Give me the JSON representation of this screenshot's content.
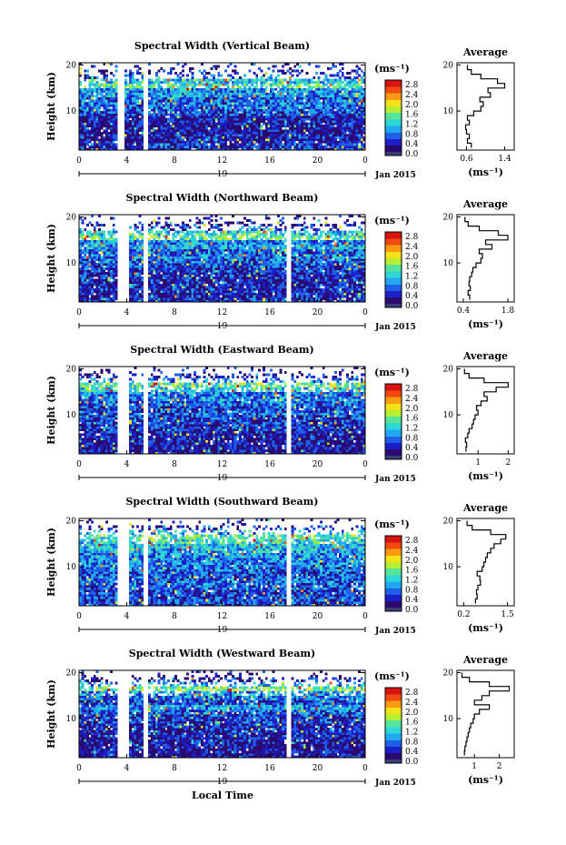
{
  "figure": {
    "xlabel": "Local Time",
    "date_label": "Jan 2015",
    "day_label": "19",
    "colorbar_unit": "(ms⁻¹)",
    "colorbar_ticks": [
      "0.0",
      "0.4",
      "0.8",
      "1.2",
      "1.6",
      "2.0",
      "2.4",
      "2.8"
    ],
    "avg_title": "Average",
    "avg_xlabel": "(ms⁻¹)",
    "ylabel": "Height (km)"
  },
  "colors": {
    "scale": [
      "#2a0a6e",
      "#1c1ec8",
      "#1f5fe8",
      "#21a8ee",
      "#2fd6d6",
      "#56e39a",
      "#b5ee35",
      "#f3e21a",
      "#f89a14",
      "#f04a12",
      "#d81410"
    ],
    "below_scale": "#3c3c78"
  },
  "chart_data": [
    {
      "type": "heatmap",
      "title": "Spectral Width (Vertical Beam)",
      "x_ticks": [
        "0",
        "4",
        "8",
        "12",
        "16",
        "20",
        "0"
      ],
      "xlim": [
        0,
        24
      ],
      "y_ticks": [
        "10",
        "20"
      ],
      "ylim": [
        1.5,
        20.5
      ],
      "color_range": [
        0,
        3.0
      ],
      "data_gaps_hours": [
        [
          3.3,
          3.8
        ],
        [
          5.5,
          5.8
        ]
      ],
      "avg_profile": {
        "x_ticks": [
          "0.6",
          "1.4"
        ],
        "xlim": [
          0.4,
          1.6
        ],
        "heights_km": [
          2.5,
          3.5,
          4.5,
          5.5,
          6.5,
          7.5,
          8.5,
          9.5,
          10.5,
          11.5,
          12.5,
          13.5,
          14.5,
          15.5,
          16.5,
          17.5,
          18.5,
          19.5
        ],
        "values": [
          0.7,
          0.62,
          0.66,
          0.6,
          0.58,
          0.66,
          0.62,
          0.75,
          0.9,
          0.95,
          0.88,
          1.1,
          1.05,
          1.4,
          1.25,
          0.9,
          0.7,
          0.62
        ]
      }
    },
    {
      "type": "heatmap",
      "title": "Spectral Width (Northward Beam)",
      "x_ticks": [
        "0",
        "4",
        "8",
        "12",
        "16",
        "20",
        "0"
      ],
      "xlim": [
        0,
        24
      ],
      "y_ticks": [
        "10",
        "20"
      ],
      "ylim": [
        1.5,
        20.5
      ],
      "color_range": [
        0,
        3.0
      ],
      "data_gaps_hours": [
        [
          3.3,
          4.2
        ],
        [
          5.5,
          5.8
        ],
        [
          17.5,
          17.8
        ]
      ],
      "avg_profile": {
        "x_ticks": [
          "0.4",
          "1.8"
        ],
        "xlim": [
          0.2,
          2.0
        ],
        "heights_km": [
          2.5,
          3.5,
          4.5,
          5.5,
          6.5,
          7.5,
          8.5,
          9.5,
          10.5,
          11.5,
          12.5,
          13.5,
          14.5,
          15.5,
          16.5,
          17.5,
          18.5,
          19.5
        ],
        "values": [
          0.6,
          0.55,
          0.62,
          0.58,
          0.6,
          0.66,
          0.7,
          0.8,
          0.95,
          1.0,
          0.9,
          1.3,
          1.1,
          1.8,
          1.5,
          0.9,
          0.55,
          0.45
        ]
      }
    },
    {
      "type": "heatmap",
      "title": "Spectral Width (Eastward Beam)",
      "x_ticks": [
        "0",
        "4",
        "8",
        "12",
        "16",
        "20",
        "0"
      ],
      "xlim": [
        0,
        24
      ],
      "y_ticks": [
        "10",
        "20"
      ],
      "ylim": [
        1.5,
        20.5
      ],
      "color_range": [
        0,
        3.0
      ],
      "data_gaps_hours": [
        [
          3.3,
          4.2
        ],
        [
          5.5,
          5.8
        ],
        [
          17.5,
          17.8
        ]
      ],
      "avg_profile": {
        "x_ticks": [
          "1",
          "2"
        ],
        "xlim": [
          0.3,
          2.2
        ],
        "heights_km": [
          2.5,
          3.5,
          4.5,
          5.5,
          6.5,
          7.5,
          8.5,
          9.5,
          10.5,
          11.5,
          12.5,
          13.5,
          14.5,
          15.5,
          16.5,
          17.5,
          18.5,
          19.5
        ],
        "values": [
          0.6,
          0.62,
          0.58,
          0.66,
          0.7,
          0.8,
          0.85,
          0.9,
          1.0,
          0.95,
          1.1,
          1.3,
          1.2,
          1.6,
          2.0,
          1.2,
          0.7,
          0.55
        ]
      }
    },
    {
      "type": "heatmap",
      "title": "Spectral Width (Southward Beam)",
      "x_ticks": [
        "0",
        "4",
        "8",
        "12",
        "16",
        "20",
        "0"
      ],
      "xlim": [
        0,
        24
      ],
      "y_ticks": [
        "10",
        "20"
      ],
      "ylim": [
        1.5,
        20.5
      ],
      "color_range": [
        0,
        3.0
      ],
      "data_gaps_hours": [
        [
          3.3,
          4.2
        ],
        [
          5.5,
          5.8
        ],
        [
          17.5,
          17.8
        ]
      ],
      "avg_profile": {
        "x_ticks": [
          "0.2",
          "1.5"
        ],
        "xlim": [
          0.0,
          1.7
        ],
        "heights_km": [
          2.5,
          3.5,
          4.5,
          5.5,
          6.5,
          7.5,
          8.5,
          9.5,
          10.5,
          11.5,
          12.5,
          13.5,
          14.5,
          15.5,
          16.5,
          17.5,
          18.5,
          19.5
        ],
        "values": [
          0.55,
          0.6,
          0.58,
          0.62,
          0.7,
          0.68,
          0.6,
          0.75,
          0.8,
          0.85,
          0.9,
          1.0,
          1.1,
          1.3,
          1.45,
          1.0,
          0.45,
          0.3
        ]
      }
    },
    {
      "type": "heatmap",
      "title": "Spectral Width (Westward Beam)",
      "x_ticks": [
        "0",
        "4",
        "8",
        "12",
        "16",
        "20",
        "0"
      ],
      "xlim": [
        0,
        24
      ],
      "y_ticks": [
        "10",
        "20"
      ],
      "ylim": [
        1.5,
        20.5
      ],
      "color_range": [
        0,
        3.0
      ],
      "data_gaps_hours": [
        [
          3.3,
          4.2
        ],
        [
          5.5,
          5.8
        ],
        [
          17.5,
          17.8
        ]
      ],
      "avg_profile": {
        "x_ticks": [
          "1",
          "2"
        ],
        "xlim": [
          0.3,
          2.6
        ],
        "heights_km": [
          2.5,
          3.5,
          4.5,
          5.5,
          6.5,
          7.5,
          8.5,
          9.5,
          10.5,
          11.5,
          12.5,
          13.5,
          14.5,
          15.5,
          16.5,
          17.5,
          18.5,
          19.5
        ],
        "values": [
          0.6,
          0.62,
          0.66,
          0.7,
          0.75,
          0.8,
          0.85,
          0.95,
          1.0,
          1.2,
          1.6,
          1.0,
          1.3,
          1.6,
          2.4,
          1.6,
          0.8,
          0.5
        ]
      }
    }
  ]
}
